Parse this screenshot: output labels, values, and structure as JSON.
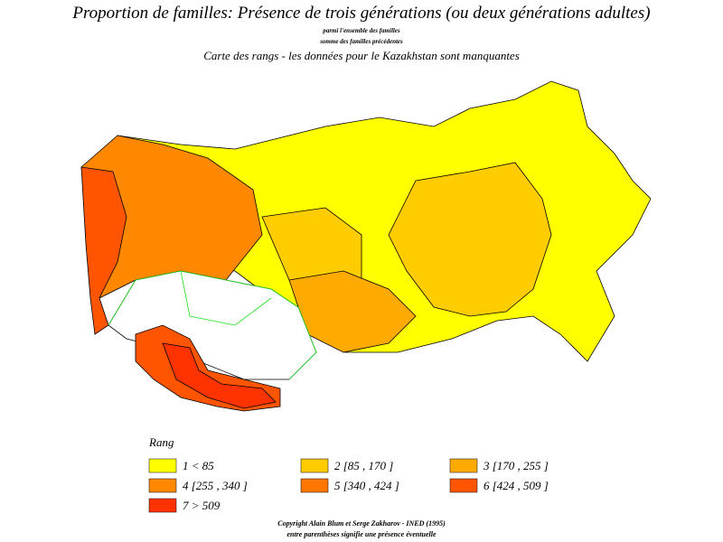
{
  "header": {
    "title": "Proportion de familles: Présence de trois générations (ou deux générations adultes)",
    "subtitle_1": "parmi l'ensemble des familles",
    "subtitle_2": "somme des familles précédentes",
    "subtitle_3": "Carte des rangs - les données pour le Kazakhstan sont manquantes"
  },
  "legend": {
    "title": "Rang",
    "items": [
      {
        "label": "1 <  85",
        "color": "#ffff00"
      },
      {
        "label": "2 [85 , 170 ]",
        "color": "#ffcc00"
      },
      {
        "label": "3 [170 , 255 ]",
        "color": "#ffaa00"
      },
      {
        "label": "4 [255 , 340 ]",
        "color": "#ff8800"
      },
      {
        "label": "5 [340 , 424 ]",
        "color": "#ff7700"
      },
      {
        "label": "6 [424 , 509 ]",
        "color": "#ff5500"
      },
      {
        "label": "7 >  509",
        "color": "#ff3300"
      }
    ]
  },
  "footer": {
    "line_1": "Copyright Alain Blum et Serge Zakharov - INED (1995)",
    "line_2": "entre parenthèses signifie une présence éventuelle"
  }
}
